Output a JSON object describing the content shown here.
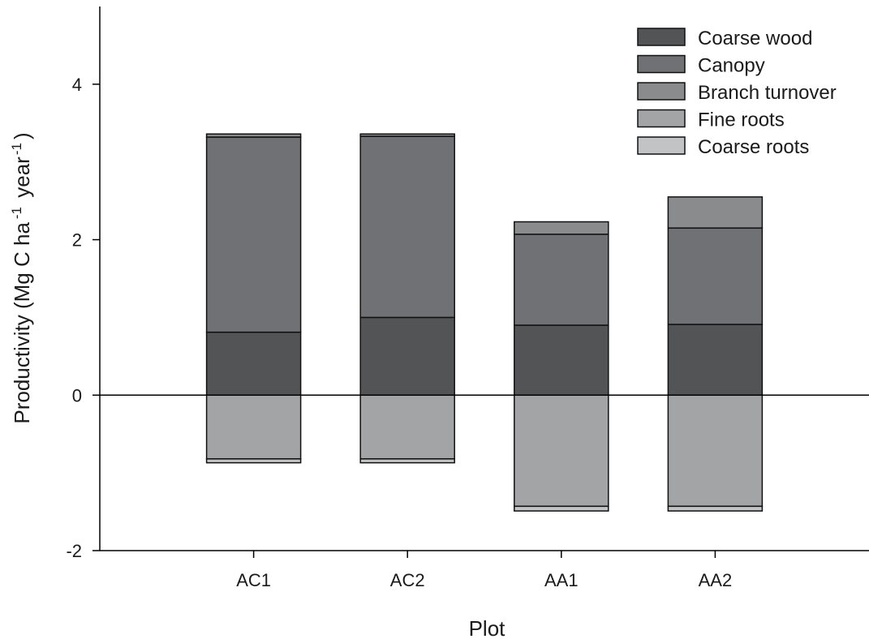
{
  "chart_data": {
    "type": "bar",
    "stacked": true,
    "title": "",
    "xlabel": "Plot",
    "ylabel": {
      "main": "Productivity (Mg C ha",
      "exp1": "-1",
      "mid": " year",
      "exp2": "-1",
      "end": ")"
    },
    "categories": [
      "AC1",
      "AC2",
      "AA1",
      "AA2"
    ],
    "ylim": [
      -2,
      5
    ],
    "yticks": [
      -2,
      0,
      2,
      4
    ],
    "ytick_labels": [
      "-2",
      "0",
      "2",
      "4"
    ],
    "grid": false,
    "zero_line": true,
    "legend_position": "top-right",
    "series": [
      {
        "name": "Coarse wood",
        "color": "#535456",
        "values": [
          0.81,
          1.0,
          0.9,
          0.91
        ]
      },
      {
        "name": "Canopy",
        "color": "#707174",
        "values": [
          2.51,
          2.33,
          1.17,
          1.24
        ]
      },
      {
        "name": "Branch turnover",
        "color": "#8a8b8d",
        "values": [
          0.04,
          0.03,
          0.16,
          0.4
        ]
      },
      {
        "name": "Fine roots",
        "color": "#a3a4a6",
        "values": [
          -0.82,
          -0.82,
          -1.43,
          -1.43
        ]
      },
      {
        "name": "Coarse roots",
        "color": "#c2c3c5",
        "values": [
          -0.05,
          -0.05,
          -0.06,
          -0.06
        ]
      }
    ]
  }
}
